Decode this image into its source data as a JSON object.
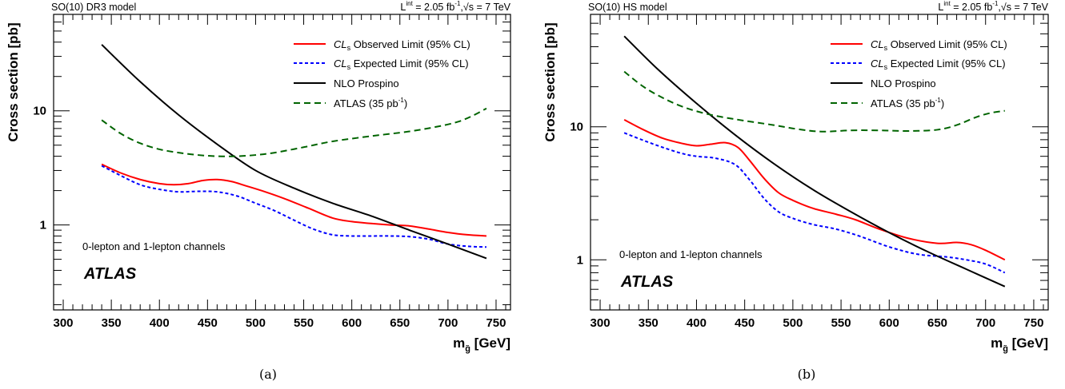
{
  "chart_data": [
    {
      "type": "line",
      "id": "a",
      "header_left": "SO(10) DR3 model",
      "header_right": "L = 2.05 fb ,√s = 7 TeV",
      "header_right_parts": {
        "L": "L",
        "int": "int",
        "lumi": " = 2.05 fb",
        "inv": "-1",
        "sqrt": ",√s = 7 TeV"
      },
      "xlabel": "m [GeV]",
      "xlabel_parts": {
        "m": "m",
        "sub": "g̃",
        "unit": " [GeV]"
      },
      "ylabel": "Cross section [pb]",
      "xlim": [
        290,
        765
      ],
      "ylim": [
        0.18,
        70
      ],
      "ylog": true,
      "xticks": [
        300,
        350,
        400,
        450,
        500,
        550,
        600,
        650,
        700,
        750
      ],
      "yticks": [
        1,
        10
      ],
      "annotation": "0-lepton and 1-lepton channels",
      "atlas_label": "ATLAS",
      "caption": "(a)",
      "series": [
        {
          "name": "CLs Observed Limit (95% CL)",
          "color": "#ff0000",
          "dash": "solid",
          "x": [
            340,
            360,
            380,
            400,
            415,
            430,
            445,
            460,
            475,
            490,
            510,
            530,
            555,
            580,
            600,
            620,
            640,
            660,
            680,
            700,
            720,
            740
          ],
          "y": [
            3.4,
            2.85,
            2.5,
            2.3,
            2.25,
            2.3,
            2.45,
            2.5,
            2.4,
            2.2,
            1.95,
            1.7,
            1.4,
            1.15,
            1.07,
            1.03,
            1.0,
            0.98,
            0.92,
            0.86,
            0.82,
            0.8
          ]
        },
        {
          "name": "CLs Expected Limit (95% CL)",
          "color": "#0000ff",
          "dash": "dotted",
          "x": [
            340,
            360,
            380,
            400,
            420,
            440,
            460,
            480,
            500,
            520,
            540,
            560,
            580,
            600,
            620,
            640,
            660,
            680,
            700,
            720,
            740
          ],
          "y": [
            3.3,
            2.7,
            2.25,
            2.05,
            1.95,
            1.97,
            1.95,
            1.8,
            1.55,
            1.33,
            1.1,
            0.92,
            0.82,
            0.8,
            0.8,
            0.8,
            0.79,
            0.75,
            0.68,
            0.65,
            0.64
          ]
        },
        {
          "name": "NLO Prospino",
          "color": "#000000",
          "dash": "solid",
          "x": [
            340,
            380,
            420,
            460,
            500,
            540,
            580,
            620,
            660,
            700,
            740
          ],
          "y": [
            38,
            18,
            9.2,
            5.1,
            3.0,
            2.1,
            1.55,
            1.2,
            0.9,
            0.68,
            0.51
          ]
        },
        {
          "name": "ATLAS (35 pb )",
          "name_parts": {
            "base": "ATLAS (35 pb",
            "sup": "-1",
            "end": ")"
          },
          "color": "#006400",
          "dash": "dashed",
          "x": [
            340,
            360,
            380,
            400,
            420,
            440,
            460,
            480,
            500,
            520,
            550,
            580,
            620,
            660,
            690,
            710,
            725,
            740
          ],
          "y": [
            8.3,
            6.3,
            5.2,
            4.6,
            4.3,
            4.1,
            4.0,
            4.0,
            4.1,
            4.3,
            4.8,
            5.4,
            6.0,
            6.6,
            7.3,
            8.0,
            9.0,
            10.5
          ]
        }
      ]
    },
    {
      "type": "line",
      "id": "b",
      "header_left": "SO(10) HS model",
      "header_right": "L = 2.05 fb ,√s = 7 TeV",
      "header_right_parts": {
        "L": "L",
        "int": "int",
        "lumi": " = 2.05 fb",
        "inv": "-1",
        "sqrt": ",√s = 7 TeV"
      },
      "xlabel": "m [GeV]",
      "xlabel_parts": {
        "m": "m",
        "sub": "g̃",
        "unit": " [GeV]"
      },
      "ylabel": "Cross section [pb]",
      "xlim": [
        290,
        765
      ],
      "ylim": [
        0.42,
        70
      ],
      "ylog": true,
      "xticks": [
        300,
        350,
        400,
        450,
        500,
        550,
        600,
        650,
        700,
        750
      ],
      "yticks": [
        1,
        10
      ],
      "annotation": "0-lepton and 1-lepton channels",
      "atlas_label": "ATLAS",
      "caption": "(b)",
      "series": [
        {
          "name": "CLs Observed Limit (95% CL)",
          "color": "#ff0000",
          "dash": "solid",
          "x": [
            325,
            345,
            365,
            385,
            400,
            415,
            430,
            443,
            455,
            470,
            485,
            500,
            520,
            545,
            565,
            590,
            620,
            650,
            670,
            685,
            700,
            720
          ],
          "y": [
            11.3,
            9.5,
            8.2,
            7.5,
            7.2,
            7.4,
            7.6,
            7.0,
            5.6,
            4.1,
            3.2,
            2.8,
            2.45,
            2.2,
            2.0,
            1.7,
            1.45,
            1.33,
            1.35,
            1.3,
            1.18,
            1.0
          ]
        },
        {
          "name": "CLs Expected Limit (95% CL)",
          "color": "#0000ff",
          "dash": "dotted",
          "x": [
            325,
            345,
            365,
            385,
            400,
            420,
            440,
            455,
            470,
            485,
            500,
            520,
            545,
            570,
            600,
            630,
            660,
            680,
            700,
            720
          ],
          "y": [
            9.0,
            7.9,
            7.0,
            6.3,
            6.0,
            5.8,
            5.2,
            4.0,
            2.9,
            2.3,
            2.05,
            1.85,
            1.7,
            1.5,
            1.25,
            1.1,
            1.05,
            1.0,
            0.93,
            0.8
          ]
        },
        {
          "name": "NLO Prospino",
          "color": "#000000",
          "dash": "solid",
          "x": [
            325,
            360,
            400,
            440,
            480,
            520,
            560,
            600,
            640,
            680,
            720
          ],
          "y": [
            48,
            27,
            15,
            8.7,
            5.3,
            3.4,
            2.3,
            1.6,
            1.15,
            0.85,
            0.63
          ]
        },
        {
          "name": "ATLAS (35 pb )",
          "name_parts": {
            "base": "ATLAS (35 pb",
            "sup": "-1",
            "end": ")"
          },
          "color": "#006400",
          "dash": "dashed",
          "x": [
            325,
            345,
            365,
            385,
            405,
            425,
            450,
            480,
            505,
            530,
            560,
            590,
            620,
            650,
            670,
            690,
            705,
            720
          ],
          "y": [
            26,
            20,
            16.5,
            14.2,
            12.8,
            11.9,
            11.1,
            10.3,
            9.6,
            9.2,
            9.4,
            9.4,
            9.3,
            9.5,
            10.3,
            11.8,
            12.7,
            13.2
          ]
        }
      ]
    }
  ]
}
